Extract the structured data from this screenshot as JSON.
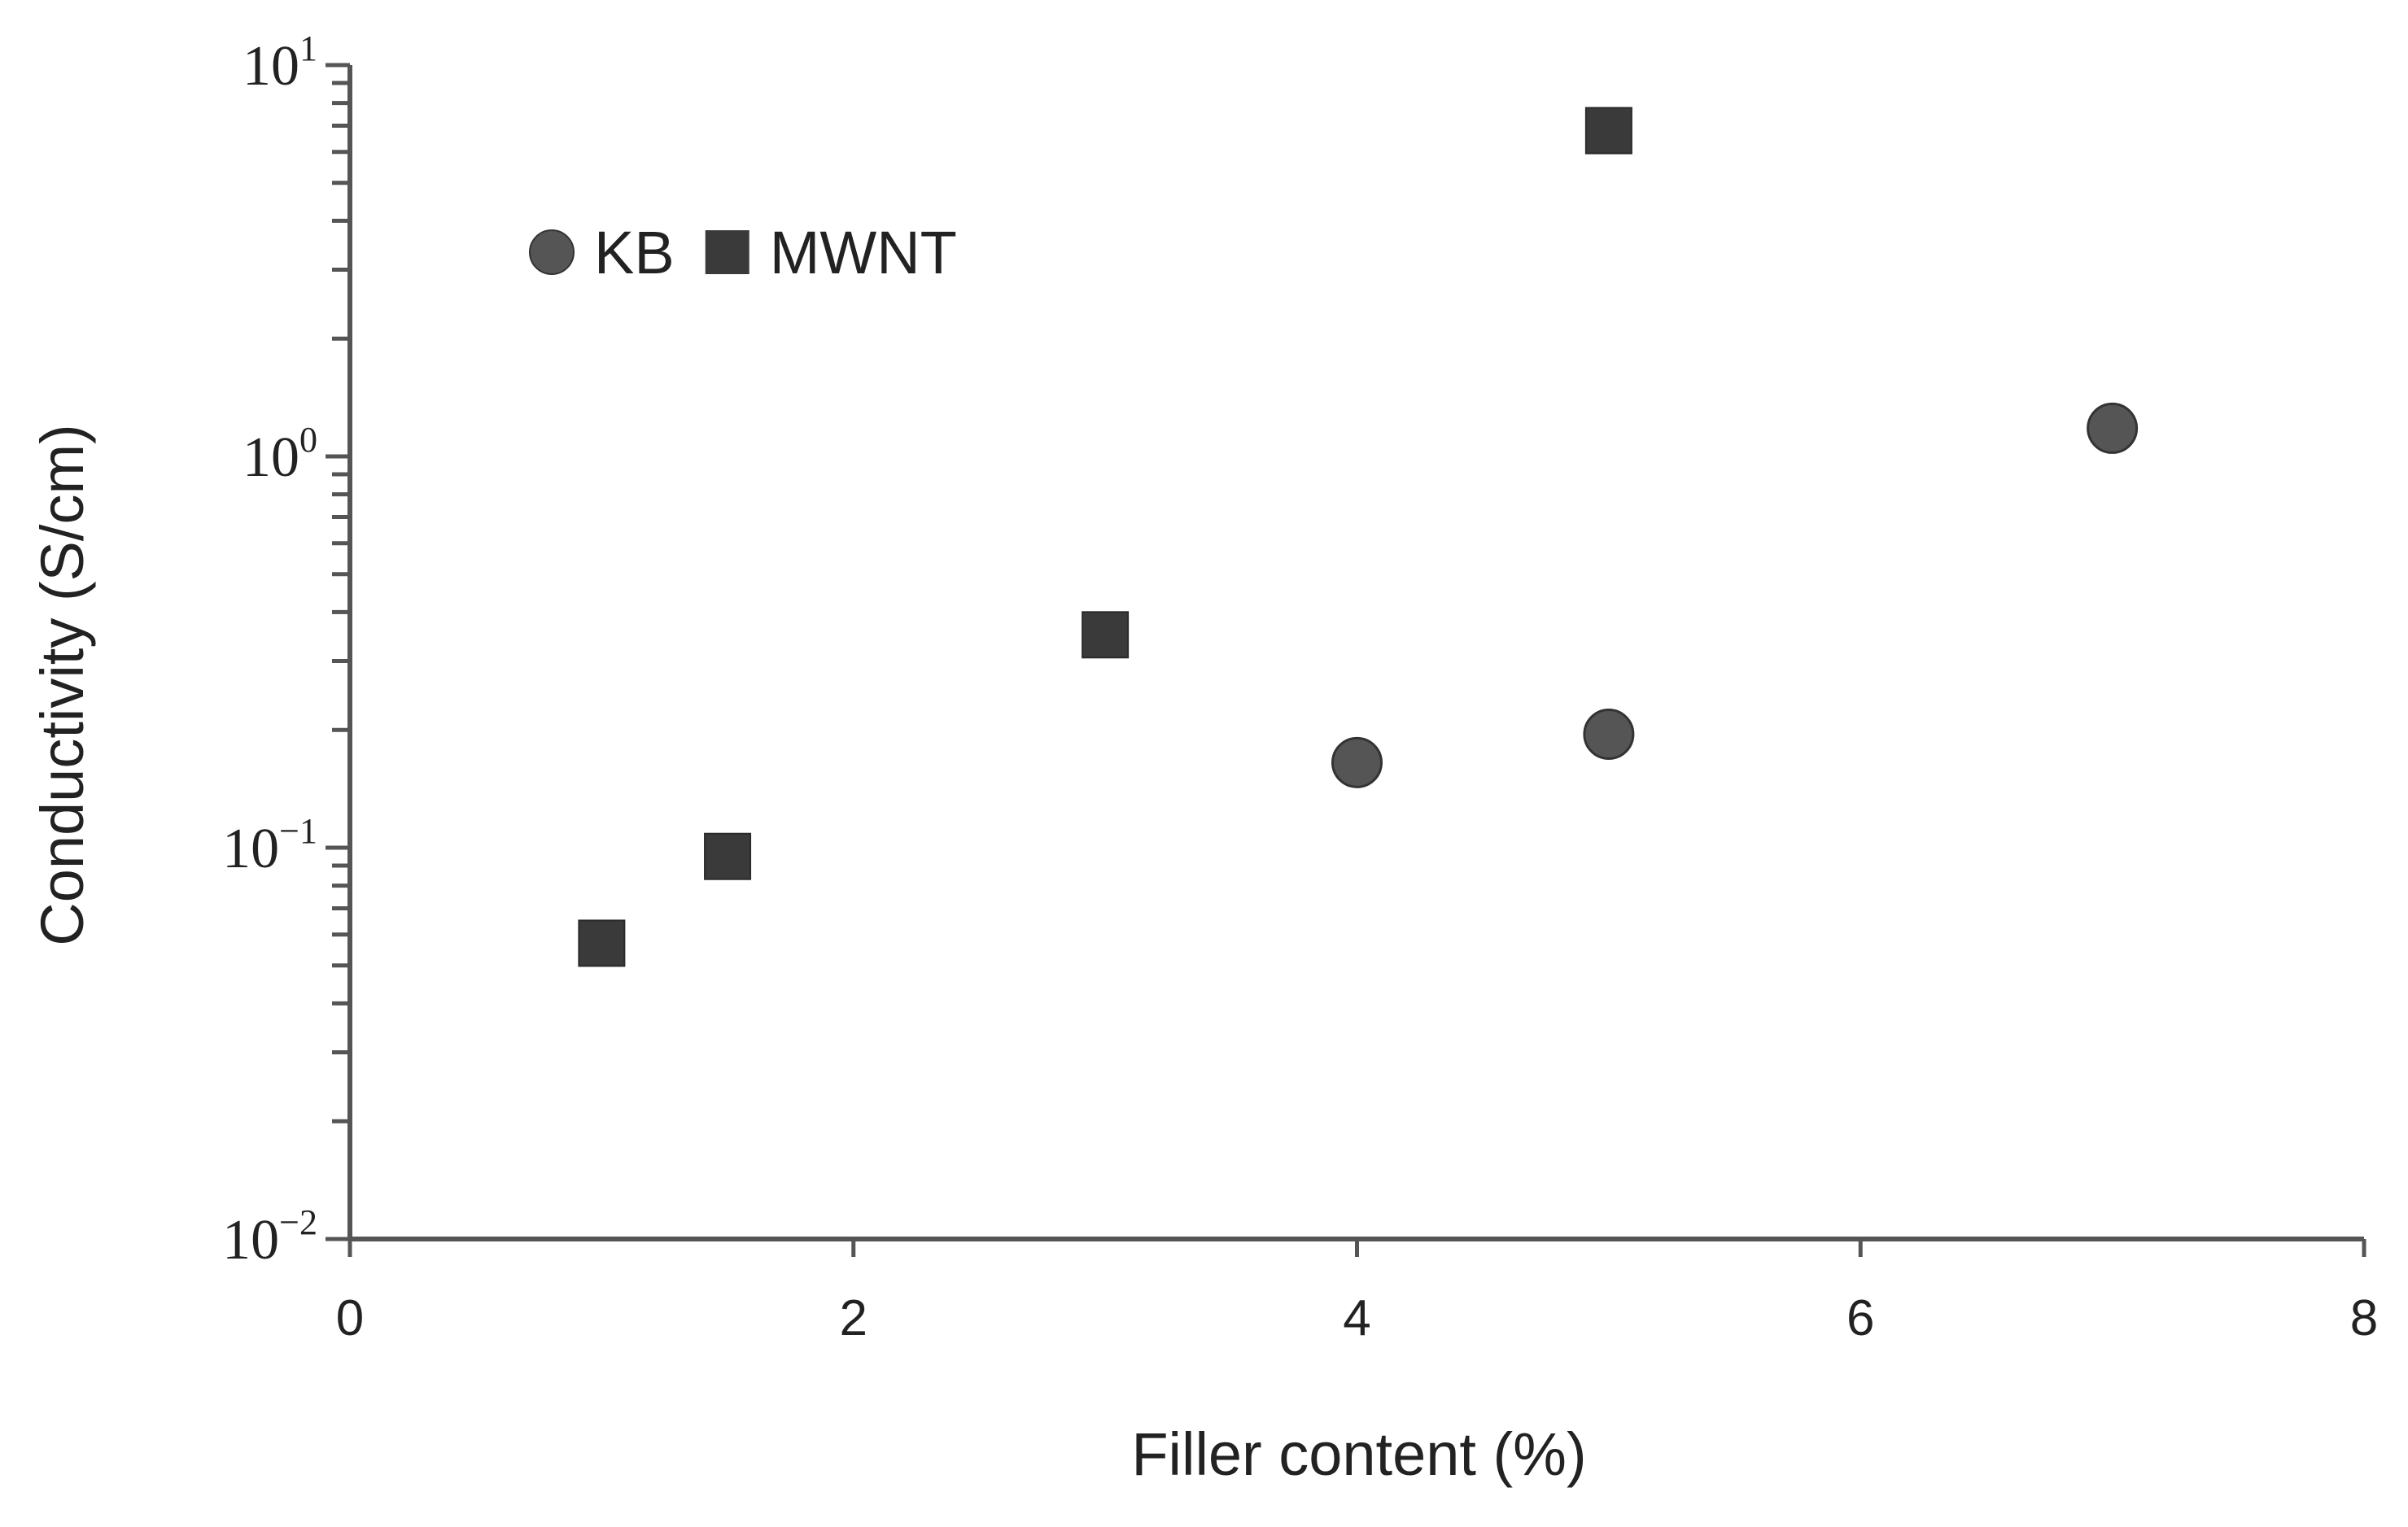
{
  "chart_data": {
    "type": "scatter",
    "xlabel": "Filler content (%)",
    "ylabel": "Conductivity (S/cm)",
    "xlim": [
      0,
      8
    ],
    "ylim": [
      0.01,
      10
    ],
    "yscale": "log",
    "x_ticks": [
      {
        "value": 0,
        "label": "0"
      },
      {
        "value": 2,
        "label": "2"
      },
      {
        "value": 4,
        "label": "4"
      },
      {
        "value": 6,
        "label": "6"
      },
      {
        "value": 8,
        "label": "8"
      }
    ],
    "y_ticks": [
      {
        "value": 10,
        "base": "10",
        "exp": "1"
      },
      {
        "value": 1,
        "base": "10",
        "exp": "0"
      },
      {
        "value": 0.1,
        "base": "10",
        "exp": "−1"
      },
      {
        "value": 0.01,
        "base": "10",
        "exp": "−2"
      }
    ],
    "grid": false,
    "legend_position": "top-left",
    "series": [
      {
        "name": "KB",
        "marker": "circle",
        "color": "#555555",
        "points": [
          {
            "x": 4,
            "y": 0.165
          },
          {
            "x": 5,
            "y": 0.195
          },
          {
            "x": 7,
            "y": 1.18
          }
        ]
      },
      {
        "name": "MWNT",
        "marker": "square",
        "color": "#3a3a3a",
        "points": [
          {
            "x": 1,
            "y": 0.057
          },
          {
            "x": 1.5,
            "y": 0.095
          },
          {
            "x": 3,
            "y": 0.35
          },
          {
            "x": 5,
            "y": 6.8
          }
        ]
      }
    ],
    "colors": {
      "axis": "#555555"
    }
  }
}
